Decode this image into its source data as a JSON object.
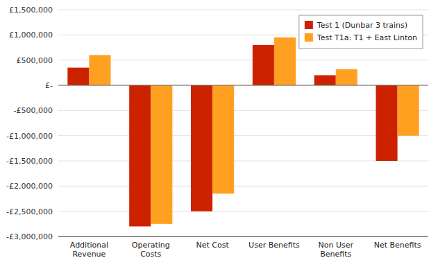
{
  "chart_data": {
    "type": "bar",
    "categories": [
      "Additional\nRevenue",
      "Operating\nCosts",
      "Net Cost",
      "User Benefits",
      "Non User\nBenefits",
      "Net Benefits"
    ],
    "series": [
      {
        "name": "Test 1 (Dunbar 3 trains)",
        "color": "#CC2200",
        "values": [
          350000,
          -2800000,
          -2500000,
          800000,
          200000,
          -1500000
        ]
      },
      {
        "name": "Test T1a: T1 + East Linton",
        "color": "#FFA020",
        "values": [
          600000,
          -2750000,
          -2150000,
          950000,
          320000,
          -1000000
        ]
      }
    ],
    "ylim": [
      -3000000,
      1500000
    ],
    "yticks": [
      {
        "value": -3000000,
        "label": "-£3,000,000"
      },
      {
        "value": -2500000,
        "label": "-£2,500,000"
      },
      {
        "value": -2000000,
        "label": "-£2,000,000"
      },
      {
        "value": -1500000,
        "label": "-£1,500,000"
      },
      {
        "value": -1000000,
        "label": "-£1,000,000"
      },
      {
        "value": -500000,
        "label": "-£500,000"
      },
      {
        "value": 0,
        "label": "£-"
      },
      {
        "value": 500000,
        "label": "£500,000"
      },
      {
        "value": 1000000,
        "label": "£1,000,000"
      },
      {
        "value": 1500000,
        "label": "£1,500,000"
      }
    ],
    "grid": true,
    "legend": "upper right"
  }
}
